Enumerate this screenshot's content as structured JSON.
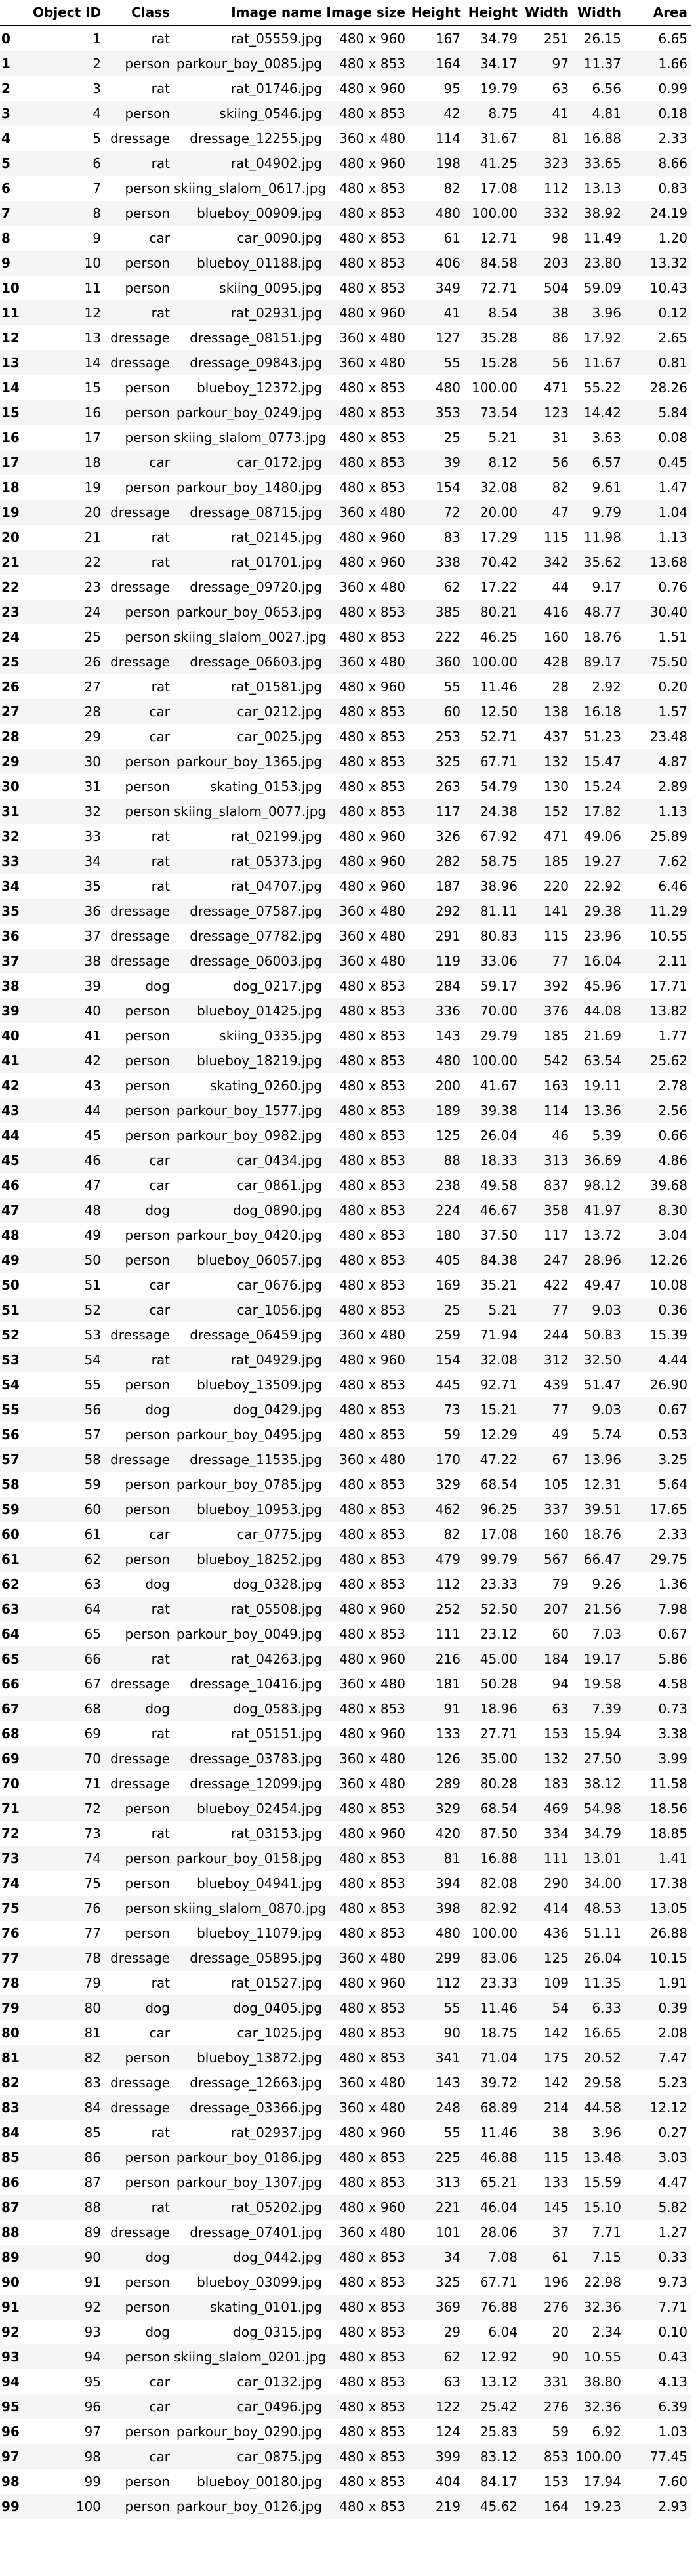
{
  "chart_data": {
    "type": "table",
    "columns": [
      "",
      "Object ID",
      "Class",
      "Image name",
      "Image size",
      "Height",
      "Height",
      "Width",
      "Width",
      "Area"
    ],
    "rows": [
      [
        "0",
        "1",
        "rat",
        "rat_05559.jpg",
        "480 x 960",
        "167",
        "34.79",
        "251",
        "26.15",
        "6.65"
      ],
      [
        "1",
        "2",
        "person",
        "parkour_boy_0085.jpg",
        "480 x 853",
        "164",
        "34.17",
        "97",
        "11.37",
        "1.66"
      ],
      [
        "2",
        "3",
        "rat",
        "rat_01746.jpg",
        "480 x 960",
        "95",
        "19.79",
        "63",
        "6.56",
        "0.99"
      ],
      [
        "3",
        "4",
        "person",
        "skiing_0546.jpg",
        "480 x 853",
        "42",
        "8.75",
        "41",
        "4.81",
        "0.18"
      ],
      [
        "4",
        "5",
        "dressage",
        "dressage_12255.jpg",
        "360 x 480",
        "114",
        "31.67",
        "81",
        "16.88",
        "2.33"
      ],
      [
        "5",
        "6",
        "rat",
        "rat_04902.jpg",
        "480 x 960",
        "198",
        "41.25",
        "323",
        "33.65",
        "8.66"
      ],
      [
        "6",
        "7",
        "person",
        "skiing_slalom_0617.jpg",
        "480 x 853",
        "82",
        "17.08",
        "112",
        "13.13",
        "0.83"
      ],
      [
        "7",
        "8",
        "person",
        "blueboy_00909.jpg",
        "480 x 853",
        "480",
        "100.00",
        "332",
        "38.92",
        "24.19"
      ],
      [
        "8",
        "9",
        "car",
        "car_0090.jpg",
        "480 x 853",
        "61",
        "12.71",
        "98",
        "11.49",
        "1.20"
      ],
      [
        "9",
        "10",
        "person",
        "blueboy_01188.jpg",
        "480 x 853",
        "406",
        "84.58",
        "203",
        "23.80",
        "13.32"
      ],
      [
        "10",
        "11",
        "person",
        "skiing_0095.jpg",
        "480 x 853",
        "349",
        "72.71",
        "504",
        "59.09",
        "10.43"
      ],
      [
        "11",
        "12",
        "rat",
        "rat_02931.jpg",
        "480 x 960",
        "41",
        "8.54",
        "38",
        "3.96",
        "0.12"
      ],
      [
        "12",
        "13",
        "dressage",
        "dressage_08151.jpg",
        "360 x 480",
        "127",
        "35.28",
        "86",
        "17.92",
        "2.65"
      ],
      [
        "13",
        "14",
        "dressage",
        "dressage_09843.jpg",
        "360 x 480",
        "55",
        "15.28",
        "56",
        "11.67",
        "0.81"
      ],
      [
        "14",
        "15",
        "person",
        "blueboy_12372.jpg",
        "480 x 853",
        "480",
        "100.00",
        "471",
        "55.22",
        "28.26"
      ],
      [
        "15",
        "16",
        "person",
        "parkour_boy_0249.jpg",
        "480 x 853",
        "353",
        "73.54",
        "123",
        "14.42",
        "5.84"
      ],
      [
        "16",
        "17",
        "person",
        "skiing_slalom_0773.jpg",
        "480 x 853",
        "25",
        "5.21",
        "31",
        "3.63",
        "0.08"
      ],
      [
        "17",
        "18",
        "car",
        "car_0172.jpg",
        "480 x 853",
        "39",
        "8.12",
        "56",
        "6.57",
        "0.45"
      ],
      [
        "18",
        "19",
        "person",
        "parkour_boy_1480.jpg",
        "480 x 853",
        "154",
        "32.08",
        "82",
        "9.61",
        "1.47"
      ],
      [
        "19",
        "20",
        "dressage",
        "dressage_08715.jpg",
        "360 x 480",
        "72",
        "20.00",
        "47",
        "9.79",
        "1.04"
      ],
      [
        "20",
        "21",
        "rat",
        "rat_02145.jpg",
        "480 x 960",
        "83",
        "17.29",
        "115",
        "11.98",
        "1.13"
      ],
      [
        "21",
        "22",
        "rat",
        "rat_01701.jpg",
        "480 x 960",
        "338",
        "70.42",
        "342",
        "35.62",
        "13.68"
      ],
      [
        "22",
        "23",
        "dressage",
        "dressage_09720.jpg",
        "360 x 480",
        "62",
        "17.22",
        "44",
        "9.17",
        "0.76"
      ],
      [
        "23",
        "24",
        "person",
        "parkour_boy_0653.jpg",
        "480 x 853",
        "385",
        "80.21",
        "416",
        "48.77",
        "30.40"
      ],
      [
        "24",
        "25",
        "person",
        "skiing_slalom_0027.jpg",
        "480 x 853",
        "222",
        "46.25",
        "160",
        "18.76",
        "1.51"
      ],
      [
        "25",
        "26",
        "dressage",
        "dressage_06603.jpg",
        "360 x 480",
        "360",
        "100.00",
        "428",
        "89.17",
        "75.50"
      ],
      [
        "26",
        "27",
        "rat",
        "rat_01581.jpg",
        "480 x 960",
        "55",
        "11.46",
        "28",
        "2.92",
        "0.20"
      ],
      [
        "27",
        "28",
        "car",
        "car_0212.jpg",
        "480 x 853",
        "60",
        "12.50",
        "138",
        "16.18",
        "1.57"
      ],
      [
        "28",
        "29",
        "car",
        "car_0025.jpg",
        "480 x 853",
        "253",
        "52.71",
        "437",
        "51.23",
        "23.48"
      ],
      [
        "29",
        "30",
        "person",
        "parkour_boy_1365.jpg",
        "480 x 853",
        "325",
        "67.71",
        "132",
        "15.47",
        "4.87"
      ],
      [
        "30",
        "31",
        "person",
        "skating_0153.jpg",
        "480 x 853",
        "263",
        "54.79",
        "130",
        "15.24",
        "2.89"
      ],
      [
        "31",
        "32",
        "person",
        "skiing_slalom_0077.jpg",
        "480 x 853",
        "117",
        "24.38",
        "152",
        "17.82",
        "1.13"
      ],
      [
        "32",
        "33",
        "rat",
        "rat_02199.jpg",
        "480 x 960",
        "326",
        "67.92",
        "471",
        "49.06",
        "25.89"
      ],
      [
        "33",
        "34",
        "rat",
        "rat_05373.jpg",
        "480 x 960",
        "282",
        "58.75",
        "185",
        "19.27",
        "7.62"
      ],
      [
        "34",
        "35",
        "rat",
        "rat_04707.jpg",
        "480 x 960",
        "187",
        "38.96",
        "220",
        "22.92",
        "6.46"
      ],
      [
        "35",
        "36",
        "dressage",
        "dressage_07587.jpg",
        "360 x 480",
        "292",
        "81.11",
        "141",
        "29.38",
        "11.29"
      ],
      [
        "36",
        "37",
        "dressage",
        "dressage_07782.jpg",
        "360 x 480",
        "291",
        "80.83",
        "115",
        "23.96",
        "10.55"
      ],
      [
        "37",
        "38",
        "dressage",
        "dressage_06003.jpg",
        "360 x 480",
        "119",
        "33.06",
        "77",
        "16.04",
        "2.11"
      ],
      [
        "38",
        "39",
        "dog",
        "dog_0217.jpg",
        "480 x 853",
        "284",
        "59.17",
        "392",
        "45.96",
        "17.71"
      ],
      [
        "39",
        "40",
        "person",
        "blueboy_01425.jpg",
        "480 x 853",
        "336",
        "70.00",
        "376",
        "44.08",
        "13.82"
      ],
      [
        "40",
        "41",
        "person",
        "skiing_0335.jpg",
        "480 x 853",
        "143",
        "29.79",
        "185",
        "21.69",
        "1.77"
      ],
      [
        "41",
        "42",
        "person",
        "blueboy_18219.jpg",
        "480 x 853",
        "480",
        "100.00",
        "542",
        "63.54",
        "25.62"
      ],
      [
        "42",
        "43",
        "person",
        "skating_0260.jpg",
        "480 x 853",
        "200",
        "41.67",
        "163",
        "19.11",
        "2.78"
      ],
      [
        "43",
        "44",
        "person",
        "parkour_boy_1577.jpg",
        "480 x 853",
        "189",
        "39.38",
        "114",
        "13.36",
        "2.56"
      ],
      [
        "44",
        "45",
        "person",
        "parkour_boy_0982.jpg",
        "480 x 853",
        "125",
        "26.04",
        "46",
        "5.39",
        "0.66"
      ],
      [
        "45",
        "46",
        "car",
        "car_0434.jpg",
        "480 x 853",
        "88",
        "18.33",
        "313",
        "36.69",
        "4.86"
      ],
      [
        "46",
        "47",
        "car",
        "car_0861.jpg",
        "480 x 853",
        "238",
        "49.58",
        "837",
        "98.12",
        "39.68"
      ],
      [
        "47",
        "48",
        "dog",
        "dog_0890.jpg",
        "480 x 853",
        "224",
        "46.67",
        "358",
        "41.97",
        "8.30"
      ],
      [
        "48",
        "49",
        "person",
        "parkour_boy_0420.jpg",
        "480 x 853",
        "180",
        "37.50",
        "117",
        "13.72",
        "3.04"
      ],
      [
        "49",
        "50",
        "person",
        "blueboy_06057.jpg",
        "480 x 853",
        "405",
        "84.38",
        "247",
        "28.96",
        "12.26"
      ],
      [
        "50",
        "51",
        "car",
        "car_0676.jpg",
        "480 x 853",
        "169",
        "35.21",
        "422",
        "49.47",
        "10.08"
      ],
      [
        "51",
        "52",
        "car",
        "car_1056.jpg",
        "480 x 853",
        "25",
        "5.21",
        "77",
        "9.03",
        "0.36"
      ],
      [
        "52",
        "53",
        "dressage",
        "dressage_06459.jpg",
        "360 x 480",
        "259",
        "71.94",
        "244",
        "50.83",
        "15.39"
      ],
      [
        "53",
        "54",
        "rat",
        "rat_04929.jpg",
        "480 x 960",
        "154",
        "32.08",
        "312",
        "32.50",
        "4.44"
      ],
      [
        "54",
        "55",
        "person",
        "blueboy_13509.jpg",
        "480 x 853",
        "445",
        "92.71",
        "439",
        "51.47",
        "26.90"
      ],
      [
        "55",
        "56",
        "dog",
        "dog_0429.jpg",
        "480 x 853",
        "73",
        "15.21",
        "77",
        "9.03",
        "0.67"
      ],
      [
        "56",
        "57",
        "person",
        "parkour_boy_0495.jpg",
        "480 x 853",
        "59",
        "12.29",
        "49",
        "5.74",
        "0.53"
      ],
      [
        "57",
        "58",
        "dressage",
        "dressage_11535.jpg",
        "360 x 480",
        "170",
        "47.22",
        "67",
        "13.96",
        "3.25"
      ],
      [
        "58",
        "59",
        "person",
        "parkour_boy_0785.jpg",
        "480 x 853",
        "329",
        "68.54",
        "105",
        "12.31",
        "5.64"
      ],
      [
        "59",
        "60",
        "person",
        "blueboy_10953.jpg",
        "480 x 853",
        "462",
        "96.25",
        "337",
        "39.51",
        "17.65"
      ],
      [
        "60",
        "61",
        "car",
        "car_0775.jpg",
        "480 x 853",
        "82",
        "17.08",
        "160",
        "18.76",
        "2.33"
      ],
      [
        "61",
        "62",
        "person",
        "blueboy_18252.jpg",
        "480 x 853",
        "479",
        "99.79",
        "567",
        "66.47",
        "29.75"
      ],
      [
        "62",
        "63",
        "dog",
        "dog_0328.jpg",
        "480 x 853",
        "112",
        "23.33",
        "79",
        "9.26",
        "1.36"
      ],
      [
        "63",
        "64",
        "rat",
        "rat_05508.jpg",
        "480 x 960",
        "252",
        "52.50",
        "207",
        "21.56",
        "7.98"
      ],
      [
        "64",
        "65",
        "person",
        "parkour_boy_0049.jpg",
        "480 x 853",
        "111",
        "23.12",
        "60",
        "7.03",
        "0.67"
      ],
      [
        "65",
        "66",
        "rat",
        "rat_04263.jpg",
        "480 x 960",
        "216",
        "45.00",
        "184",
        "19.17",
        "5.86"
      ],
      [
        "66",
        "67",
        "dressage",
        "dressage_10416.jpg",
        "360 x 480",
        "181",
        "50.28",
        "94",
        "19.58",
        "4.58"
      ],
      [
        "67",
        "68",
        "dog",
        "dog_0583.jpg",
        "480 x 853",
        "91",
        "18.96",
        "63",
        "7.39",
        "0.73"
      ],
      [
        "68",
        "69",
        "rat",
        "rat_05151.jpg",
        "480 x 960",
        "133",
        "27.71",
        "153",
        "15.94",
        "3.38"
      ],
      [
        "69",
        "70",
        "dressage",
        "dressage_03783.jpg",
        "360 x 480",
        "126",
        "35.00",
        "132",
        "27.50",
        "3.99"
      ],
      [
        "70",
        "71",
        "dressage",
        "dressage_12099.jpg",
        "360 x 480",
        "289",
        "80.28",
        "183",
        "38.12",
        "11.58"
      ],
      [
        "71",
        "72",
        "person",
        "blueboy_02454.jpg",
        "480 x 853",
        "329",
        "68.54",
        "469",
        "54.98",
        "18.56"
      ],
      [
        "72",
        "73",
        "rat",
        "rat_03153.jpg",
        "480 x 960",
        "420",
        "87.50",
        "334",
        "34.79",
        "18.85"
      ],
      [
        "73",
        "74",
        "person",
        "parkour_boy_0158.jpg",
        "480 x 853",
        "81",
        "16.88",
        "111",
        "13.01",
        "1.41"
      ],
      [
        "74",
        "75",
        "person",
        "blueboy_04941.jpg",
        "480 x 853",
        "394",
        "82.08",
        "290",
        "34.00",
        "17.38"
      ],
      [
        "75",
        "76",
        "person",
        "skiing_slalom_0870.jpg",
        "480 x 853",
        "398",
        "82.92",
        "414",
        "48.53",
        "13.05"
      ],
      [
        "76",
        "77",
        "person",
        "blueboy_11079.jpg",
        "480 x 853",
        "480",
        "100.00",
        "436",
        "51.11",
        "26.88"
      ],
      [
        "77",
        "78",
        "dressage",
        "dressage_05895.jpg",
        "360 x 480",
        "299",
        "83.06",
        "125",
        "26.04",
        "10.15"
      ],
      [
        "78",
        "79",
        "rat",
        "rat_01527.jpg",
        "480 x 960",
        "112",
        "23.33",
        "109",
        "11.35",
        "1.91"
      ],
      [
        "79",
        "80",
        "dog",
        "dog_0405.jpg",
        "480 x 853",
        "55",
        "11.46",
        "54",
        "6.33",
        "0.39"
      ],
      [
        "80",
        "81",
        "car",
        "car_1025.jpg",
        "480 x 853",
        "90",
        "18.75",
        "142",
        "16.65",
        "2.08"
      ],
      [
        "81",
        "82",
        "person",
        "blueboy_13872.jpg",
        "480 x 853",
        "341",
        "71.04",
        "175",
        "20.52",
        "7.47"
      ],
      [
        "82",
        "83",
        "dressage",
        "dressage_12663.jpg",
        "360 x 480",
        "143",
        "39.72",
        "142",
        "29.58",
        "5.23"
      ],
      [
        "83",
        "84",
        "dressage",
        "dressage_03366.jpg",
        "360 x 480",
        "248",
        "68.89",
        "214",
        "44.58",
        "12.12"
      ],
      [
        "84",
        "85",
        "rat",
        "rat_02937.jpg",
        "480 x 960",
        "55",
        "11.46",
        "38",
        "3.96",
        "0.27"
      ],
      [
        "85",
        "86",
        "person",
        "parkour_boy_0186.jpg",
        "480 x 853",
        "225",
        "46.88",
        "115",
        "13.48",
        "3.03"
      ],
      [
        "86",
        "87",
        "person",
        "parkour_boy_1307.jpg",
        "480 x 853",
        "313",
        "65.21",
        "133",
        "15.59",
        "4.47"
      ],
      [
        "87",
        "88",
        "rat",
        "rat_05202.jpg",
        "480 x 960",
        "221",
        "46.04",
        "145",
        "15.10",
        "5.82"
      ],
      [
        "88",
        "89",
        "dressage",
        "dressage_07401.jpg",
        "360 x 480",
        "101",
        "28.06",
        "37",
        "7.71",
        "1.27"
      ],
      [
        "89",
        "90",
        "dog",
        "dog_0442.jpg",
        "480 x 853",
        "34",
        "7.08",
        "61",
        "7.15",
        "0.33"
      ],
      [
        "90",
        "91",
        "person",
        "blueboy_03099.jpg",
        "480 x 853",
        "325",
        "67.71",
        "196",
        "22.98",
        "9.73"
      ],
      [
        "91",
        "92",
        "person",
        "skating_0101.jpg",
        "480 x 853",
        "369",
        "76.88",
        "276",
        "32.36",
        "7.71"
      ],
      [
        "92",
        "93",
        "dog",
        "dog_0315.jpg",
        "480 x 853",
        "29",
        "6.04",
        "20",
        "2.34",
        "0.10"
      ],
      [
        "93",
        "94",
        "person",
        "skiing_slalom_0201.jpg",
        "480 x 853",
        "62",
        "12.92",
        "90",
        "10.55",
        "0.43"
      ],
      [
        "94",
        "95",
        "car",
        "car_0132.jpg",
        "480 x 853",
        "63",
        "13.12",
        "331",
        "38.80",
        "4.13"
      ],
      [
        "95",
        "96",
        "car",
        "car_0496.jpg",
        "480 x 853",
        "122",
        "25.42",
        "276",
        "32.36",
        "6.39"
      ],
      [
        "96",
        "97",
        "person",
        "parkour_boy_0290.jpg",
        "480 x 853",
        "124",
        "25.83",
        "59",
        "6.92",
        "1.03"
      ],
      [
        "97",
        "98",
        "car",
        "car_0875.jpg",
        "480 x 853",
        "399",
        "83.12",
        "853",
        "100.00",
        "77.45"
      ],
      [
        "98",
        "99",
        "person",
        "blueboy_00180.jpg",
        "480 x 853",
        "404",
        "84.17",
        "153",
        "17.94",
        "7.60"
      ],
      [
        "99",
        "100",
        "person",
        "parkour_boy_0126.jpg",
        "480 x 853",
        "219",
        "45.62",
        "164",
        "19.23",
        "2.93"
      ]
    ]
  }
}
